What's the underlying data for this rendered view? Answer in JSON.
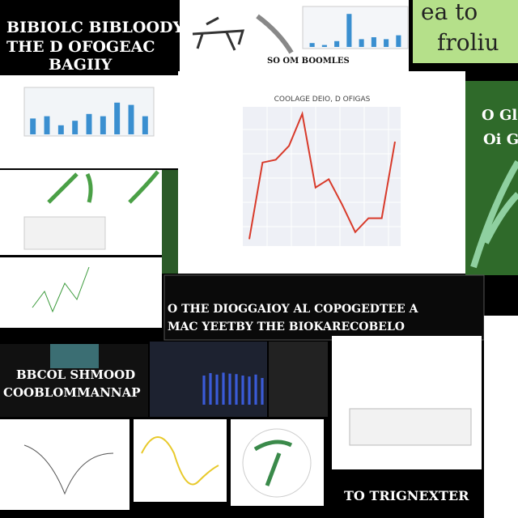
{
  "panels": {
    "top_left": {
      "lines": [
        "BIBIOLC BIBLOODY",
        "THE D OFOGEAC",
        "BAGIIY"
      ]
    },
    "top_center": {
      "caption": "SO OM BOOMLES",
      "bars": [
        10,
        5,
        15,
        85,
        20,
        25,
        20,
        30
      ],
      "ylim": [
        0,
        100
      ],
      "color": "#3a8fd0"
    },
    "top_right": {
      "lines": [
        "ea to",
        "froliu"
      ]
    },
    "left_bars": {
      "bars": [
        35,
        40,
        20,
        30,
        45,
        40,
        70,
        65,
        40
      ],
      "ylim": [
        0,
        100
      ],
      "color": "#3a8fd0"
    },
    "main_chart": {
      "title": "COOLAGE DEIO, D OFIGAS",
      "values": [
        5,
        60,
        62,
        72,
        95,
        42,
        48,
        30,
        10,
        20,
        20,
        75
      ],
      "ylim": [
        0,
        100
      ],
      "color": "#d83a2a"
    },
    "right_green": {
      "lines": [
        "O Gl",
        "Oi G"
      ]
    },
    "banner": {
      "lines": [
        "O THE DIOGGAIOY AL COPOGEDTEE A",
        "MAC YEETBY THE BIOKARECOBELO"
      ]
    },
    "bottom_left": {
      "lines": [
        "BBCOL SHMOOD",
        "COOBLOMMANNAP"
      ]
    },
    "dark_bars": {
      "bars": [
        60,
        65,
        62,
        66,
        64,
        63,
        60,
        58,
        62,
        55
      ],
      "ylim": [
        0,
        100
      ],
      "color": "#3a5bd8"
    },
    "bottom_right": {
      "caption": "TO TRIGNEXTER"
    }
  }
}
